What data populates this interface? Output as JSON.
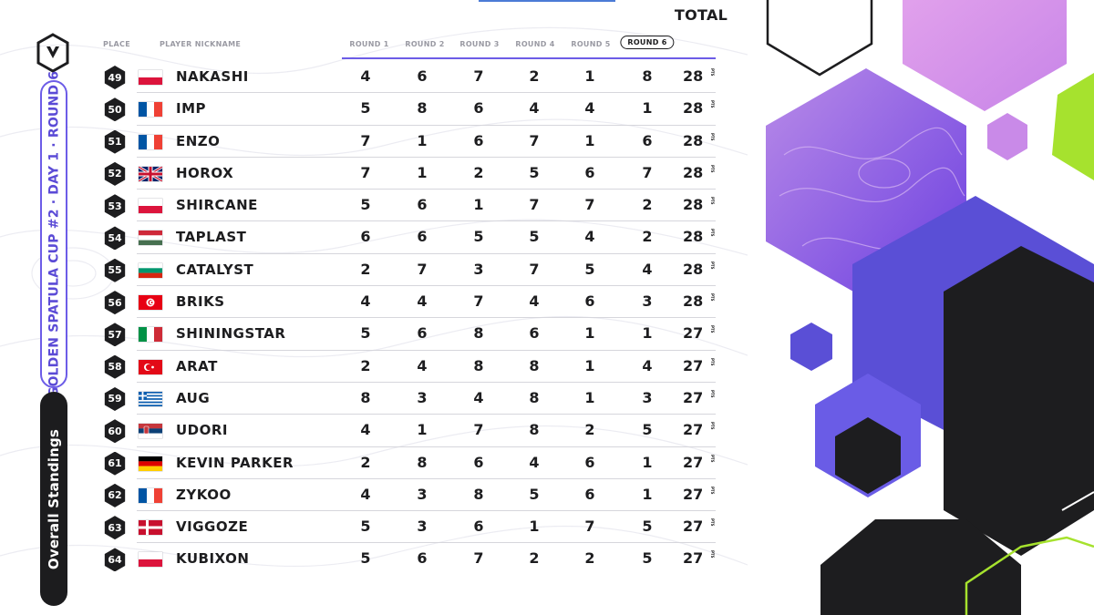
{
  "sidebar": {
    "event_title": "GOLDEN SPATULA CUP #2 · DAY 1 · ROUND 6",
    "standings_label": "Overall Standings"
  },
  "table": {
    "headers": {
      "place": "PLACE",
      "nickname": "PLAYER NICKNAME",
      "rounds": [
        "ROUND 1",
        "ROUND 2",
        "ROUND 3",
        "ROUND 4",
        "ROUND 5",
        "ROUND 6"
      ],
      "total": "TOTAL"
    },
    "current_round_index": 5,
    "points_suffix": "PTS",
    "rows": [
      {
        "place": "49",
        "flag": "poland",
        "nickname": "NAKASHI",
        "scores": [
          "4",
          "6",
          "7",
          "2",
          "1",
          "8"
        ],
        "total": "28"
      },
      {
        "place": "50",
        "flag": "france",
        "nickname": "IMP",
        "scores": [
          "5",
          "8",
          "6",
          "4",
          "4",
          "1"
        ],
        "total": "28"
      },
      {
        "place": "51",
        "flag": "france",
        "nickname": "ENZO",
        "scores": [
          "7",
          "1",
          "6",
          "7",
          "1",
          "6"
        ],
        "total": "28"
      },
      {
        "place": "52",
        "flag": "united-kingdom",
        "nickname": "HOROX",
        "scores": [
          "7",
          "1",
          "2",
          "5",
          "6",
          "7"
        ],
        "total": "28"
      },
      {
        "place": "53",
        "flag": "poland",
        "nickname": "SHIRCANE",
        "scores": [
          "5",
          "6",
          "1",
          "7",
          "7",
          "2"
        ],
        "total": "28"
      },
      {
        "place": "54",
        "flag": "hungary",
        "nickname": "TAPLAST",
        "scores": [
          "6",
          "6",
          "5",
          "5",
          "4",
          "2"
        ],
        "total": "28"
      },
      {
        "place": "55",
        "flag": "bulgaria",
        "nickname": "CATALYST",
        "scores": [
          "2",
          "7",
          "3",
          "7",
          "5",
          "4"
        ],
        "total": "28"
      },
      {
        "place": "56",
        "flag": "tunisia",
        "nickname": "BRIKS",
        "scores": [
          "4",
          "4",
          "7",
          "4",
          "6",
          "3"
        ],
        "total": "28"
      },
      {
        "place": "57",
        "flag": "italy",
        "nickname": "SHININGSTAR",
        "scores": [
          "5",
          "6",
          "8",
          "6",
          "1",
          "1"
        ],
        "total": "27"
      },
      {
        "place": "58",
        "flag": "turkey",
        "nickname": "ARAT",
        "scores": [
          "2",
          "4",
          "8",
          "8",
          "1",
          "4"
        ],
        "total": "27"
      },
      {
        "place": "59",
        "flag": "greece",
        "nickname": "AUG",
        "scores": [
          "8",
          "3",
          "4",
          "8",
          "1",
          "3"
        ],
        "total": "27"
      },
      {
        "place": "60",
        "flag": "serbia",
        "nickname": "UDORI",
        "scores": [
          "4",
          "1",
          "7",
          "8",
          "2",
          "5"
        ],
        "total": "27"
      },
      {
        "place": "61",
        "flag": "germany",
        "nickname": "KEVIN PARKER",
        "scores": [
          "2",
          "8",
          "6",
          "4",
          "6",
          "1"
        ],
        "total": "27"
      },
      {
        "place": "62",
        "flag": "france",
        "nickname": "ZYKOO",
        "scores": [
          "4",
          "3",
          "8",
          "5",
          "6",
          "1"
        ],
        "total": "27"
      },
      {
        "place": "63",
        "flag": "denmark",
        "nickname": "VIGGOZE",
        "scores": [
          "5",
          "3",
          "6",
          "1",
          "7",
          "5"
        ],
        "total": "27"
      },
      {
        "place": "64",
        "flag": "poland",
        "nickname": "KUBIXON",
        "scores": [
          "5",
          "6",
          "7",
          "2",
          "2",
          "5"
        ],
        "total": "27"
      }
    ]
  },
  "colors": {
    "accent": "#6c5ce7",
    "dark": "#1d1d1f",
    "lime": "#a6e22e"
  }
}
